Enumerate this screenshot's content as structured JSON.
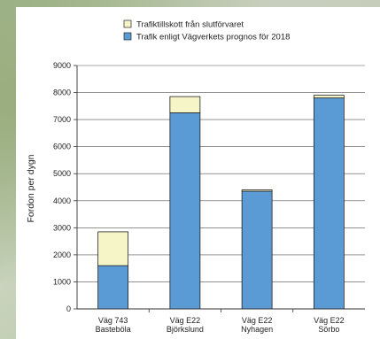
{
  "chart_data": {
    "type": "bar",
    "stacked": true,
    "title": "",
    "xlabel": "",
    "ylabel": "Fordon per dygn",
    "ylim": [
      0,
      9000
    ],
    "yticks": [
      0,
      1000,
      2000,
      3000,
      4000,
      5000,
      6000,
      7000,
      8000,
      9000
    ],
    "grid": true,
    "legend_position": "top",
    "categories": [
      [
        "Väg 743",
        "Basteböla"
      ],
      [
        "Väg E22",
        "Björkslund"
      ],
      [
        "Väg E22",
        "Nyhagen"
      ],
      [
        "Väg E22",
        "Sörbo"
      ]
    ],
    "series": [
      {
        "name": "Trafik enligt Vägverkets prognos för 2018",
        "color": "#5b9bd5",
        "values": [
          1600,
          7250,
          4350,
          7800
        ]
      },
      {
        "name": "Trafiktillskott från slutförvaret",
        "color": "#f5f5c8",
        "values": [
          1250,
          600,
          50,
          100
        ]
      }
    ],
    "legend_order": [
      1,
      0
    ]
  }
}
